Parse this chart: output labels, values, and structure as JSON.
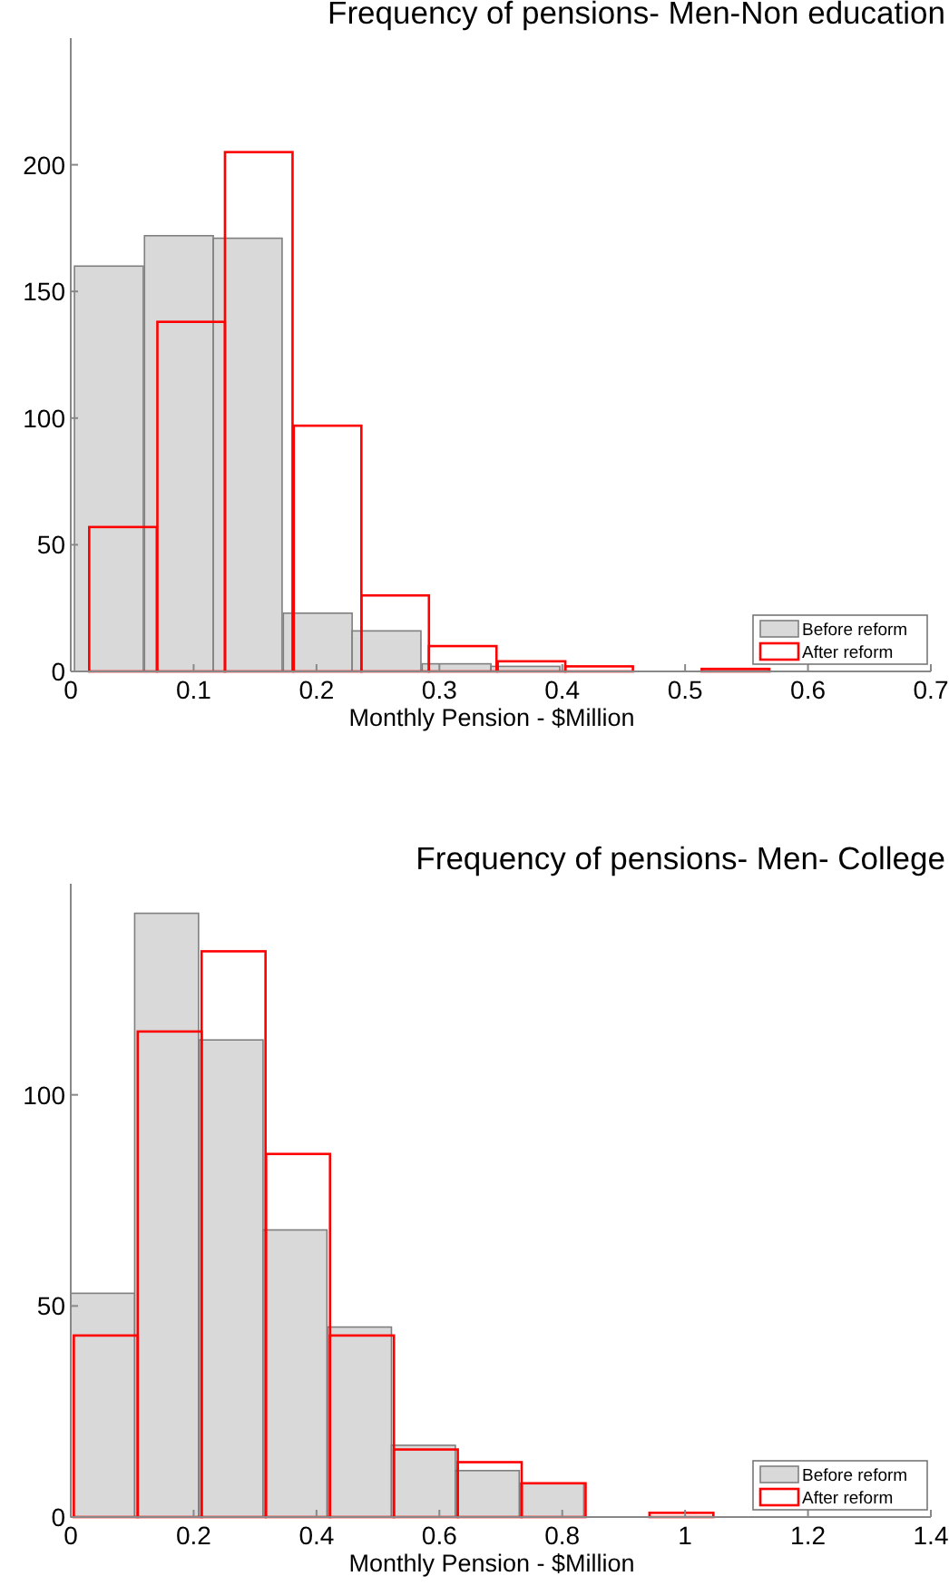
{
  "chart_data": [
    {
      "type": "bar",
      "title": "Frequency of pensions- Men-Non education",
      "xlabel": "Monthly Pension - $Million",
      "xlim": [
        0,
        0.7
      ],
      "xticks": [
        0,
        0.1,
        0.2,
        0.3,
        0.4,
        0.5,
        0.6,
        0.7
      ],
      "ylim": [
        0,
        250
      ],
      "yticks": [
        0,
        50,
        100,
        150,
        200
      ],
      "legend": "bottom right",
      "grid": false,
      "series": [
        {
          "name": "Before reform",
          "color": "#d9d9d9",
          "x": [
            0.031,
            0.088,
            0.144,
            0.201,
            0.257,
            0.314,
            0.37,
            0.427,
            0.484,
            0.54
          ],
          "values": [
            160,
            172,
            171,
            23,
            16,
            3,
            2,
            0,
            0,
            0
          ]
        },
        {
          "name": "After reform",
          "color": "#ff0000",
          "x": [
            0.0425,
            0.098,
            0.153,
            0.209,
            0.264,
            0.319,
            0.375,
            0.43,
            0.486,
            0.541
          ],
          "values": [
            57,
            138,
            205,
            97,
            30,
            10,
            4,
            2,
            0,
            1
          ]
        }
      ]
    },
    {
      "type": "bar",
      "title": "Frequency of pensions- Men- College",
      "xlabel": "Monthly Pension - $Million",
      "xlim": [
        0,
        1.4
      ],
      "xticks": [
        0,
        0.2,
        0.4,
        0.6,
        0.8,
        1,
        1.2,
        1.4
      ],
      "ylim": [
        0,
        150
      ],
      "yticks": [
        0,
        50,
        100
      ],
      "legend": "bottom right",
      "grid": false,
      "series": [
        {
          "name": "Before reform",
          "color": "#d9d9d9",
          "x": [
            0.052,
            0.156,
            0.261,
            0.365,
            0.47,
            0.574,
            0.678,
            0.783,
            0.887,
            0.991
          ],
          "values": [
            53,
            143,
            113,
            68,
            45,
            17,
            11,
            8,
            0,
            0
          ]
        },
        {
          "name": "After reform",
          "color": "#ff0000",
          "x": [
            0.057,
            0.161,
            0.265,
            0.37,
            0.474,
            0.578,
            0.682,
            0.786,
            0.89,
            0.994
          ],
          "values": [
            43,
            115,
            134,
            86,
            43,
            16,
            13,
            8,
            0,
            1
          ]
        }
      ]
    }
  ]
}
